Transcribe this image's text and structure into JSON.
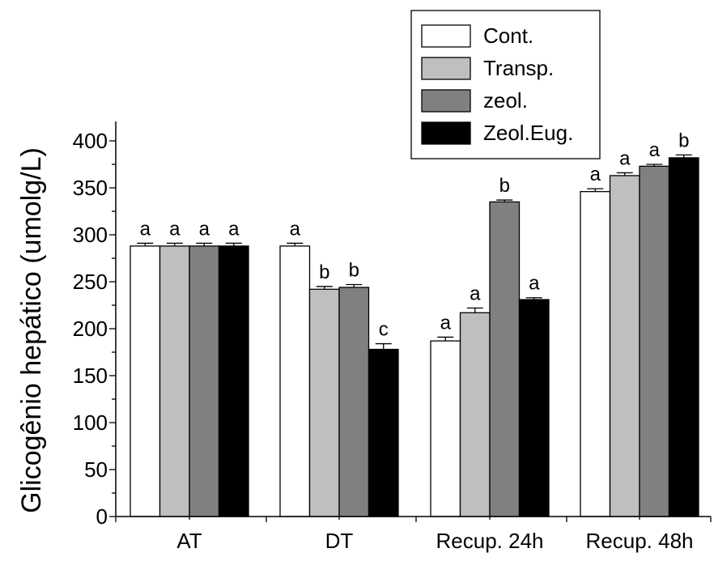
{
  "chart_data": {
    "type": "bar",
    "title": "",
    "xlabel": "",
    "ylabel": "Glicogênio hepático (umolg/L)",
    "ylim": [
      0,
      420
    ],
    "yticks": [
      0,
      50,
      100,
      150,
      200,
      250,
      300,
      350,
      400
    ],
    "grid": false,
    "legend_position": "top-right",
    "categories": [
      "AT",
      "DT",
      "Recup. 24h",
      "Recup. 48h"
    ],
    "series": [
      {
        "name": "Cont.",
        "color": "#ffffff",
        "values": [
          288,
          288,
          187,
          346
        ],
        "errors": [
          3,
          3,
          4,
          3
        ],
        "labels": [
          "a",
          "a",
          "a",
          "a"
        ]
      },
      {
        "name": "Transp.",
        "color": "#bfbfbf",
        "values": [
          288,
          242,
          217,
          363
        ],
        "errors": [
          3,
          3,
          5,
          3
        ],
        "labels": [
          "a",
          "b",
          "a",
          "a"
        ]
      },
      {
        "name": "zeol.",
        "color": "#808080",
        "values": [
          288,
          244,
          335,
          373
        ],
        "errors": [
          3,
          3,
          2,
          2
        ],
        "labels": [
          "a",
          "b",
          "b",
          "a"
        ]
      },
      {
        "name": "Zeol.Eug.",
        "color": "#000000",
        "values": [
          288,
          178,
          231,
          382
        ],
        "errors": [
          3,
          6,
          2,
          3
        ],
        "labels": [
          "a",
          "c",
          "a",
          "b"
        ]
      }
    ]
  }
}
